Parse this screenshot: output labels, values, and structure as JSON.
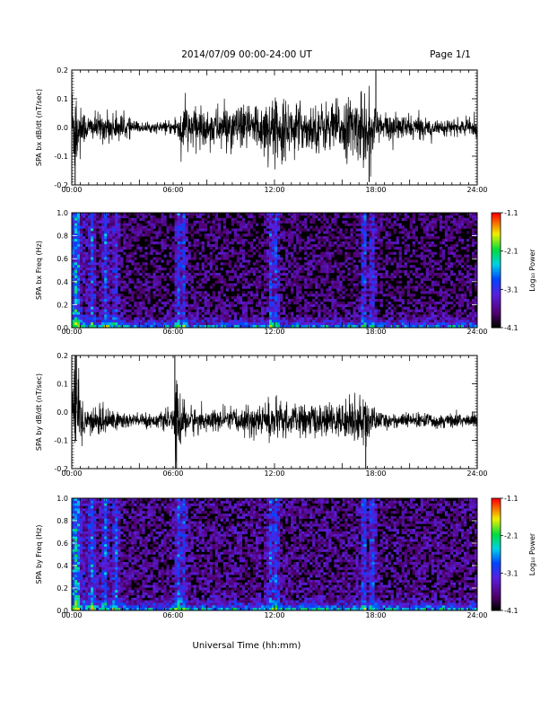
{
  "header": {
    "title": "2014/07/09  00:00-24:00 UT",
    "page": "Page 1/1"
  },
  "xaxis": {
    "label": "Universal Time (hh:mm)",
    "ticks": [
      "00:00",
      "06:00",
      "12:00",
      "18:00",
      "24:00"
    ],
    "range_hours": [
      0,
      24
    ]
  },
  "colorbar": {
    "label": "Log₁₀ Power",
    "ticks": [
      "-1.1",
      "-2.1",
      "-3.1",
      "-4.1"
    ],
    "range": [
      -4.1,
      -1.1
    ],
    "colormap": "rainbow (black-violet-blue-cyan-green-yellow-red)"
  },
  "chart_data": [
    {
      "type": "line",
      "ylabel": "SPA bx dB/dt (nT/sec)",
      "ylim": [
        -0.2,
        0.2
      ],
      "yticks": [
        "0.2",
        "0.1",
        "0.0",
        "-0.1",
        "-0.2"
      ],
      "xlim": [
        0,
        24
      ],
      "description": "Noisy dB/dt signal; amplitude envelope by hour",
      "envelope": {
        "x": [
          0,
          0.3,
          0.6,
          1,
          2,
          3,
          4,
          5,
          6,
          6.5,
          7,
          8,
          9,
          10,
          11,
          12,
          13,
          14,
          15,
          16,
          17,
          17.5,
          18,
          19,
          20,
          21,
          22,
          23,
          24
        ],
        "y": [
          0.2,
          0.2,
          0.08,
          0.05,
          0.06,
          0.05,
          0.02,
          0.02,
          0.03,
          0.1,
          0.09,
          0.07,
          0.09,
          0.08,
          0.11,
          0.12,
          0.1,
          0.09,
          0.1,
          0.11,
          0.13,
          0.16,
          0.08,
          0.05,
          0.05,
          0.04,
          0.03,
          0.03,
          0.04
        ]
      },
      "spikes": [
        {
          "x": 18.0,
          "y": 0.2
        },
        {
          "x": 0.2,
          "y": -0.2
        },
        {
          "x": 17.6,
          "y": -0.19
        }
      ]
    },
    {
      "type": "heatmap",
      "ylabel": "SPA bx Freq (Hz)",
      "ylim": [
        0,
        1.0
      ],
      "yticks": [
        "1.0",
        "0.8",
        "0.6",
        "0.4",
        "0.2",
        "0.0"
      ],
      "xlim": [
        0,
        24
      ],
      "zlim": [
        -4.1,
        -1.1
      ],
      "bright_columns_hours": [
        0.3,
        1.2,
        2.0,
        2.6,
        6.3,
        6.6,
        11.8,
        12.1,
        17.3,
        17.8
      ],
      "floor_level": -3.8,
      "low_freq_peak": -2.5
    },
    {
      "type": "line",
      "ylabel": "SPA by dB/dt (nT/sec)",
      "ylim": [
        -0.2,
        0.2
      ],
      "yticks": [
        "0.2",
        "0.1",
        "0.0",
        "-0.1",
        "-0.2"
      ],
      "xlim": [
        0,
        24
      ],
      "envelope": {
        "x": [
          0,
          0.3,
          0.6,
          1,
          2,
          3,
          4,
          5,
          6,
          6.2,
          6.5,
          7,
          8,
          9,
          10,
          11,
          12,
          13,
          14,
          15,
          16,
          17,
          17.5,
          18,
          19,
          20,
          21,
          22,
          23,
          24
        ],
        "y": [
          0.2,
          0.2,
          0.1,
          0.05,
          0.06,
          0.04,
          0.03,
          0.03,
          0.04,
          0.2,
          0.09,
          0.06,
          0.04,
          0.05,
          0.05,
          0.07,
          0.08,
          0.06,
          0.07,
          0.06,
          0.07,
          0.09,
          0.1,
          0.04,
          0.03,
          0.03,
          0.03,
          0.03,
          0.03,
          0.03
        ]
      },
      "offset": -0.03,
      "spikes": [
        {
          "x": 6.1,
          "y": 0.2
        },
        {
          "x": 6.2,
          "y": -0.2
        },
        {
          "x": 17.4,
          "y": -0.2
        },
        {
          "x": 0.2,
          "y": 0.2
        }
      ]
    },
    {
      "type": "heatmap",
      "ylabel": "SPA by Freq (Hz)",
      "ylim": [
        0,
        1.0
      ],
      "yticks": [
        "1.0",
        "0.8",
        "0.6",
        "0.4",
        "0.2",
        "0.0"
      ],
      "xlim": [
        0,
        24
      ],
      "zlim": [
        -4.1,
        -1.1
      ],
      "bright_columns_hours": [
        0.3,
        1.2,
        2.0,
        2.6,
        6.3,
        6.6,
        11.8,
        12.1,
        17.3,
        17.8
      ],
      "floor_level": -3.7,
      "low_freq_peak": -2.4
    }
  ]
}
